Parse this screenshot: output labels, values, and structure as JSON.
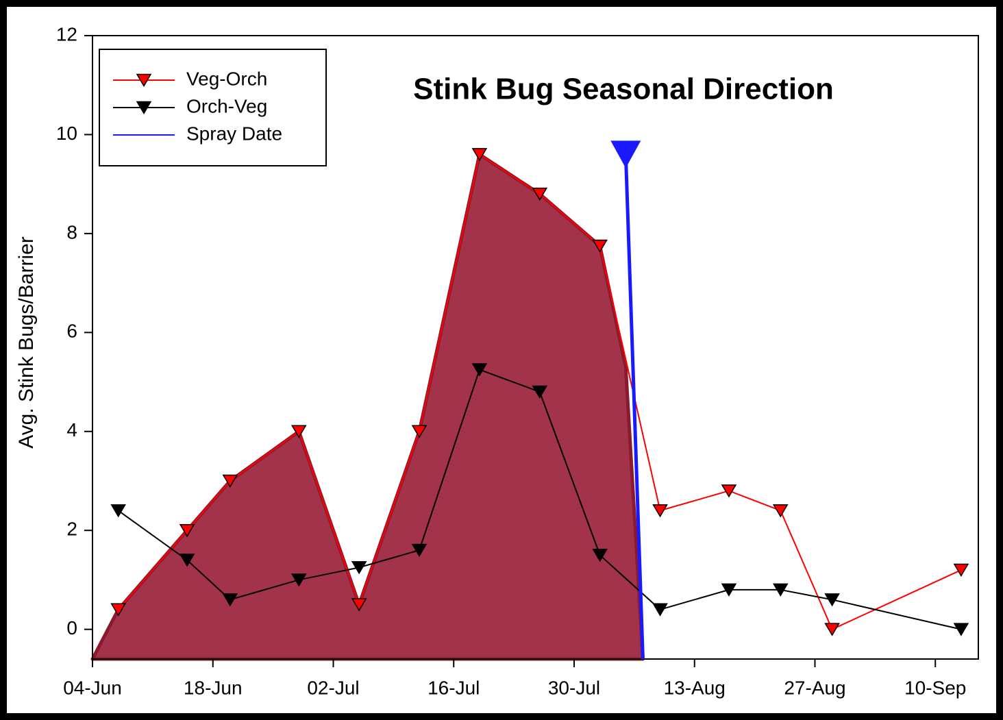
{
  "chart_data": {
    "type": "line",
    "title": "Stink Bug Seasonal Direction",
    "ylabel": "Avg. Stink Bugs/Barrier",
    "xlim": [
      "04-Jun",
      "15-Sep"
    ],
    "xticks": [
      "04-Jun",
      "18-Jun",
      "02-Jul",
      "16-Jul",
      "30-Jul",
      "13-Aug",
      "27-Aug",
      "10-Sep"
    ],
    "ylim": [
      -0.6,
      12
    ],
    "yticks": [
      0,
      2,
      4,
      6,
      8,
      10,
      12
    ],
    "legend": "upper left",
    "shaded_area": {
      "color": "#a3334a",
      "edge": "#8b1a2e",
      "x": [
        "04-Jun",
        "07-Jun",
        "15-Jun",
        "20-Jun",
        "28-Jun",
        "05-Jul",
        "12-Jul",
        "19-Jul",
        "26-Jul",
        "02-Aug",
        "05-Aug",
        "07-Aug"
      ],
      "values": [
        -0.6,
        0.4,
        2.0,
        3.0,
        4.0,
        0.5,
        4.0,
        9.6,
        8.8,
        7.75,
        5.3,
        -0.6
      ]
    },
    "series": [
      {
        "name": "Veg-Orch",
        "color": "#ff0000",
        "marker": "triangle-down",
        "x": [
          "07-Jun",
          "15-Jun",
          "20-Jun",
          "28-Jun",
          "05-Jul",
          "12-Jul",
          "19-Jul",
          "26-Jul",
          "02-Aug",
          "09-Aug",
          "17-Aug",
          "23-Aug",
          "29-Aug",
          "13-Sep"
        ],
        "values": [
          0.4,
          2.0,
          3.0,
          4.0,
          0.5,
          4.0,
          9.6,
          8.8,
          7.75,
          2.4,
          2.8,
          2.4,
          0.0,
          1.2
        ]
      },
      {
        "name": "Orch-Veg",
        "color": "#000000",
        "marker": "triangle-down",
        "x": [
          "07-Jun",
          "15-Jun",
          "20-Jun",
          "28-Jun",
          "05-Jul",
          "12-Jul",
          "19-Jul",
          "26-Jul",
          "02-Aug",
          "09-Aug",
          "17-Aug",
          "23-Aug",
          "29-Aug",
          "13-Sep"
        ],
        "values": [
          2.4,
          1.4,
          0.6,
          1.0,
          1.25,
          1.6,
          5.25,
          4.8,
          1.5,
          0.4,
          0.8,
          0.8,
          0.6,
          0.0
        ]
      },
      {
        "name": "Spray Date",
        "color": "#1a1aff",
        "marker": "start-triangle",
        "x": [
          "05-Aug",
          "07-Aug"
        ],
        "values": [
          9.6,
          -0.6
        ]
      }
    ]
  }
}
